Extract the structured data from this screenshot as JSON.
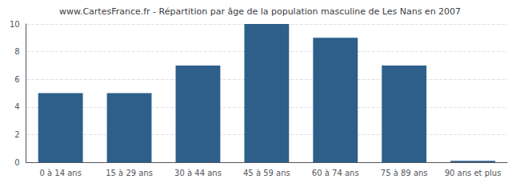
{
  "chart_data": {
    "type": "bar",
    "title": "www.CartesFrance.fr - Répartition par âge de la population masculine de Les Nans en 2007",
    "categories": [
      "0 à 14 ans",
      "15 à 29 ans",
      "30 à 44 ans",
      "45 à 59 ans",
      "60 à 74 ans",
      "75 à 89 ans",
      "90 ans et plus"
    ],
    "values": [
      5,
      5,
      7,
      10,
      9,
      7,
      0.1
    ],
    "color": "#2e5f8a",
    "ylim": [
      0,
      10
    ],
    "yticks": [
      0,
      2,
      4,
      6,
      8,
      10
    ],
    "grid": true
  }
}
